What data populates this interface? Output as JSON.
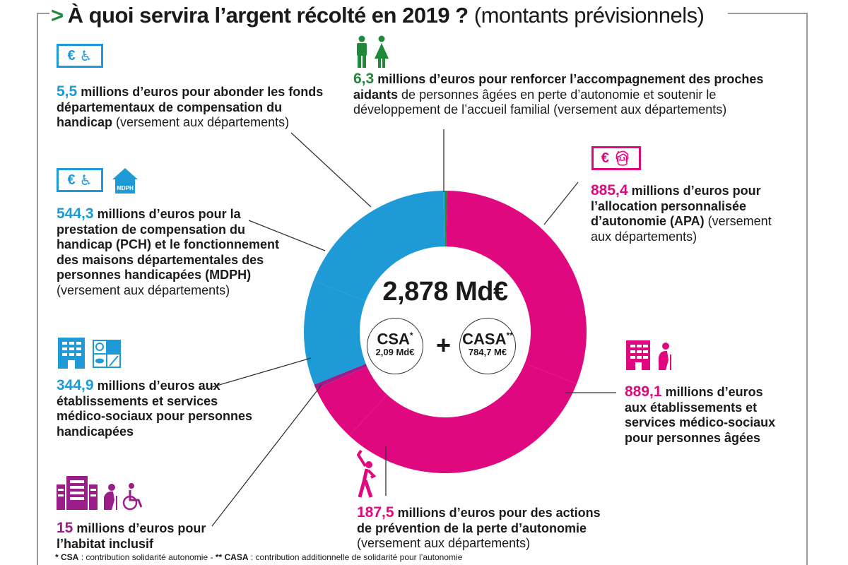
{
  "title": {
    "arrow": ">",
    "main": "À quoi servira l’argent récolté en 2019 ?",
    "sub": "(montants prévisionnels)"
  },
  "center": {
    "total": "2,878 Md€",
    "csa_label": "CSA",
    "csa_mark": "*",
    "csa_value": "2,09 Md€",
    "plus": "+",
    "casa_label": "CASA",
    "casa_mark": "**",
    "casa_value": "784,7 M€"
  },
  "blocks": {
    "fdch": {
      "amount": "5,5",
      "bold": "millions d’euros pour abonder les fonds départementaux de compensation du handicap",
      "normal": "(versement aux départements)",
      "icons": [
        "euro-icon",
        "wheelchair-icon"
      ]
    },
    "aidants": {
      "amount": "6,3",
      "bold": "millions d’euros pour renforcer l’accompagnement des proches aidants",
      "normal": "de personnes âgées en perte d’autonomie et soutenir le développement de l’accueil familial (versement aux départements)",
      "icons": [
        "man-icon",
        "woman-icon"
      ]
    },
    "pch": {
      "amount": "544,3",
      "bold": "millions d’euros pour la prestation de compensation du handicap (PCH) et le fonctionnement des maisons départementales des personnes handicapées (MDPH)",
      "normal": "(versement aux départements)",
      "icons": [
        "euro-icon",
        "wheelchair-icon",
        "mdph-house-icon"
      ],
      "mdph_label": "MDPH"
    },
    "apa": {
      "amount": "885,4",
      "bold": "millions d’euros pour l’allocation personnalisée d’autonomie (APA)",
      "normal": "(versement aux départements)",
      "icons": [
        "euro-icon",
        "elderly-person-icon"
      ]
    },
    "esms_ph": {
      "amount": "344,9",
      "bold": "millions d’euros aux établissements et services médico-sociaux pour personnes handicapées",
      "icons": [
        "building-icon",
        "disabilities-grid-icon"
      ]
    },
    "esms_pa": {
      "amount": "889,1",
      "bold": "millions d’euros aux établissements et services médico-sociaux pour personnes âgées",
      "icons": [
        "building-icon",
        "elderly-person-icon"
      ]
    },
    "habitat": {
      "amount": "15",
      "bold": "millions d’euros pour l’habitat inclusif",
      "icons": [
        "buildings-icon",
        "elderly-person-icon",
        "wheelchair-icon"
      ]
    },
    "prevention": {
      "amount": "187,5",
      "bold": "millions d’euros pour des actions de prévention de la perte d’autonomie",
      "normal": "(versement aux départements)",
      "icons": [
        "stretching-person-icon"
      ]
    }
  },
  "footnote": {
    "csa_key": "* CSA",
    "csa_text": ": contribution solidarité autonomie -",
    "casa_key": "** CASA",
    "casa_text": ": contribution additionnelle de solidarité pour l’autonomie"
  },
  "colors": {
    "blue": "#1e9ad6",
    "pink": "#e0087f",
    "green": "#1f8a3a",
    "purple": "#9b1d8a"
  },
  "chart_data": {
    "type": "pie",
    "subtype": "donut",
    "title": "À quoi servira l’argent récolté en 2019 ? (montants prévisionnels)",
    "center_label": "2,878 Md€",
    "unit": "millions d’euros",
    "categories": [
      "Accompagnement des proches aidants",
      "Allocation personnalisée d’autonomie (APA)",
      "Établissements et services médico-sociaux pour personnes âgées",
      "Prévention de la perte d’autonomie",
      "Habitat inclusif",
      "Établissements et services médico-sociaux pour personnes handicapées",
      "Prestation de compensation du handicap (PCH) et MDPH",
      "Fonds départementaux de compensation du handicap"
    ],
    "values": [
      6.3,
      885.4,
      889.1,
      187.5,
      15,
      344.9,
      544.3,
      5.5
    ],
    "segment_colors": [
      "#1f8a3a",
      "#e0087f",
      "#e0087f",
      "#e0087f",
      "#9b1d8a",
      "#1e9ad6",
      "#1e9ad6",
      "#1e9ad6"
    ],
    "sources": [
      {
        "name": "CSA",
        "value": "2,09 Md€"
      },
      {
        "name": "CASA",
        "value": "784,7 M€"
      }
    ],
    "legend_position": "annotations around donut"
  }
}
